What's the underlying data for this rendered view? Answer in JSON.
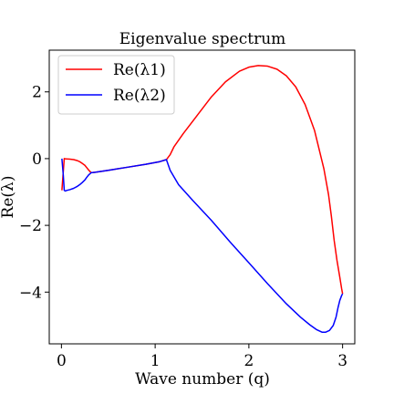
{
  "chart_data": {
    "type": "line",
    "title": "Eigenvalue spectrum",
    "xlabel": "Wave number (q)",
    "ylabel": "Re(λ)",
    "xlim": [
      -0.13,
      3.13
    ],
    "ylim": [
      -5.55,
      3.25
    ],
    "xticks": [
      0,
      1,
      2,
      3
    ],
    "yticks": [
      -4,
      -2,
      0,
      2
    ],
    "grid": false,
    "legend_position": "top-left",
    "series": [
      {
        "name": "Re(λ1)",
        "color": "#ff0000",
        "x": [
          0.005,
          0.03,
          0.04,
          0.06,
          0.09,
          0.13,
          0.17,
          0.2,
          0.22,
          0.25,
          0.27,
          0.29,
          0.31,
          0.32,
          0.33,
          0.36,
          0.5,
          0.7,
          0.9,
          1.05,
          1.12,
          1.16,
          1.2,
          1.3,
          1.45,
          1.6,
          1.75,
          1.9,
          2.0,
          2.1,
          2.2,
          2.3,
          2.4,
          2.5,
          2.6,
          2.7,
          2.8,
          2.85,
          2.88,
          2.91,
          2.94,
          2.97,
          2.99,
          3.0
        ],
        "y": [
          -0.95,
          0.0,
          -0.005,
          -0.01,
          -0.015,
          -0.03,
          -0.06,
          -0.1,
          -0.14,
          -0.2,
          -0.27,
          -0.34,
          -0.4,
          -0.42,
          -0.42,
          -0.41,
          -0.35,
          -0.26,
          -0.17,
          -0.09,
          -0.03,
          0.12,
          0.35,
          0.75,
          1.3,
          1.85,
          2.3,
          2.62,
          2.74,
          2.79,
          2.77,
          2.68,
          2.48,
          2.15,
          1.62,
          0.85,
          -0.3,
          -1.08,
          -1.72,
          -2.45,
          -3.05,
          -3.55,
          -3.9,
          -4.05
        ]
      },
      {
        "name": "Re(λ2)",
        "color": "#0000ff",
        "x": [
          0.005,
          0.02,
          0.03,
          0.04,
          0.06,
          0.09,
          0.13,
          0.17,
          0.2,
          0.22,
          0.25,
          0.27,
          0.29,
          0.31,
          0.32,
          0.33,
          0.36,
          0.5,
          0.7,
          0.9,
          1.05,
          1.12,
          1.16,
          1.25,
          1.4,
          1.6,
          1.8,
          2.0,
          2.2,
          2.4,
          2.55,
          2.65,
          2.72,
          2.78,
          2.82,
          2.86,
          2.9,
          2.93,
          2.95,
          2.97,
          2.99,
          3.0
        ],
        "y": [
          0.0,
          -0.5,
          -0.95,
          -0.97,
          -0.95,
          -0.93,
          -0.89,
          -0.83,
          -0.77,
          -0.72,
          -0.64,
          -0.56,
          -0.49,
          -0.44,
          -0.42,
          -0.42,
          -0.41,
          -0.35,
          -0.26,
          -0.17,
          -0.09,
          -0.03,
          -0.35,
          -0.78,
          -1.25,
          -1.85,
          -2.5,
          -3.12,
          -3.75,
          -4.35,
          -4.75,
          -4.98,
          -5.12,
          -5.2,
          -5.2,
          -5.15,
          -5.0,
          -4.75,
          -4.48,
          -4.25,
          -4.1,
          -4.05
        ]
      }
    ]
  }
}
